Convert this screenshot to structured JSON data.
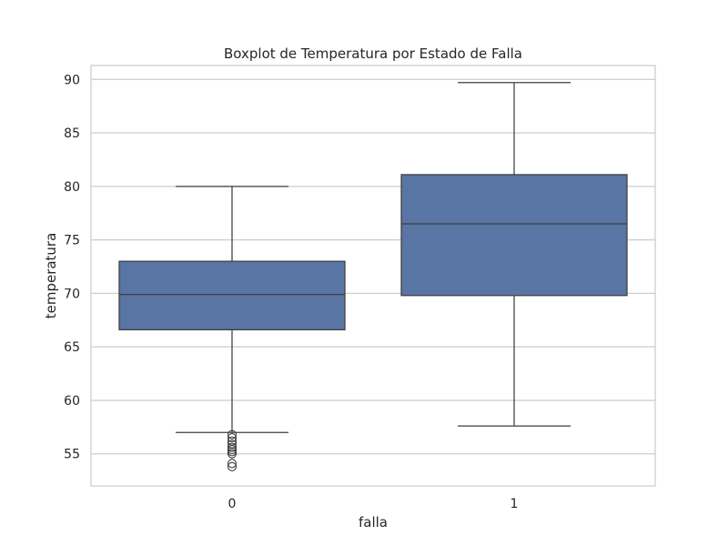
{
  "chart_data": {
    "type": "boxplot",
    "title": "Boxplot de Temperatura por Estado de Falla",
    "xlabel": "falla",
    "ylabel": "temperatura",
    "categories": [
      "0",
      "1"
    ],
    "ylim": [
      52,
      91.3
    ],
    "yticks": [
      55,
      60,
      65,
      70,
      75,
      80,
      85,
      90
    ],
    "grid": true,
    "box_color": "#5975a4",
    "line_color": "#3f3f3f",
    "boxes": [
      {
        "category": "0",
        "whisker_low": 57.0,
        "q1": 66.6,
        "median": 69.9,
        "q3": 73.0,
        "whisker_high": 80.0,
        "outliers": [
          56.8,
          56.5,
          56.2,
          55.9,
          55.6,
          55.4,
          55.2,
          55.0,
          54.1,
          53.8
        ]
      },
      {
        "category": "1",
        "whisker_low": 57.6,
        "q1": 69.8,
        "median": 76.5,
        "q3": 81.1,
        "whisker_high": 89.7,
        "outliers": []
      }
    ]
  }
}
